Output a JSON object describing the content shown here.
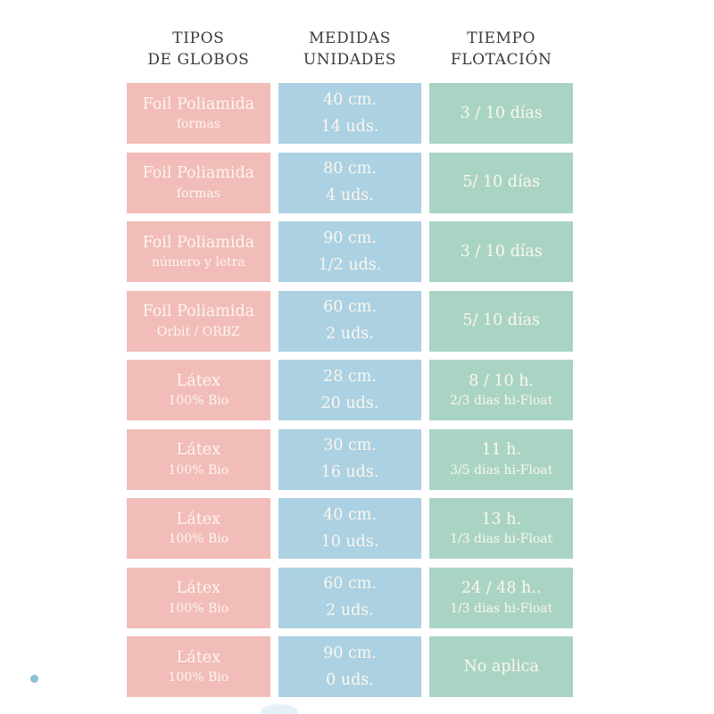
{
  "chart_data": {
    "type": "table",
    "columns": [
      "TIPOS DE GLOBOS",
      "MEDIDAS UNIDADES",
      "TIEMPO FLOTACIÓN"
    ],
    "headers": [
      {
        "line1": "TIPOS",
        "line2": "DE GLOBOS"
      },
      {
        "line1": "MEDIDAS",
        "line2": "UNIDADES"
      },
      {
        "line1": "TIEMPO",
        "line2": "FLOTACIÓN"
      }
    ],
    "rows": [
      {
        "tipo": [
          "Foil Poliamida",
          "formas"
        ],
        "medida": [
          "40 cm.",
          "14 uds."
        ],
        "tiempo": [
          "3 / 10 días"
        ]
      },
      {
        "tipo": [
          "Foil Poliamida",
          "formas"
        ],
        "medida": [
          "80 cm.",
          "4 uds."
        ],
        "tiempo": [
          "5/ 10 días"
        ]
      },
      {
        "tipo": [
          "Foil Poliamida",
          "número y letra"
        ],
        "medida": [
          "90 cm.",
          "1/2 uds."
        ],
        "tiempo": [
          "3 / 10 días"
        ]
      },
      {
        "tipo": [
          "Foil Poliamida",
          "Orbit / ORBZ"
        ],
        "medida": [
          "60 cm.",
          "2 uds."
        ],
        "tiempo": [
          "5/ 10 días"
        ]
      },
      {
        "tipo": [
          "Látex",
          "100% Bio"
        ],
        "medida": [
          "28 cm.",
          "20 uds."
        ],
        "tiempo": [
          "8 / 10 h.",
          "2/3 dias hi-Float"
        ]
      },
      {
        "tipo": [
          "Látex",
          "100% Bio"
        ],
        "medida": [
          "30 cm.",
          "16 uds."
        ],
        "tiempo": [
          "11 h.",
          "3/5 dias hi-Float"
        ]
      },
      {
        "tipo": [
          "Látex",
          "100% Bio"
        ],
        "medida": [
          "40 cm.",
          "10 uds."
        ],
        "tiempo": [
          "13 h.",
          "1/3 dias hi-Float"
        ]
      },
      {
        "tipo": [
          "Látex",
          "100% Bio"
        ],
        "medida": [
          "60 cm.",
          "2 uds."
        ],
        "tiempo": [
          "24 / 48 h..",
          "1/3 dias hi-Float"
        ]
      },
      {
        "tipo": [
          "Látex",
          "100% Bio"
        ],
        "medida": [
          "90 cm.",
          "0 uds."
        ],
        "tiempo": [
          "No aplica"
        ]
      }
    ],
    "colors": {
      "tipo_column": "#f2bcb8",
      "medida_column": "#abd1e2",
      "tiempo_column": "#a9d4c4",
      "header_text": "#3b3b3b",
      "cell_text": "#fcf6ee",
      "decorative_dot": "#8cc0db"
    },
    "grid": false,
    "legend_position": "none"
  }
}
